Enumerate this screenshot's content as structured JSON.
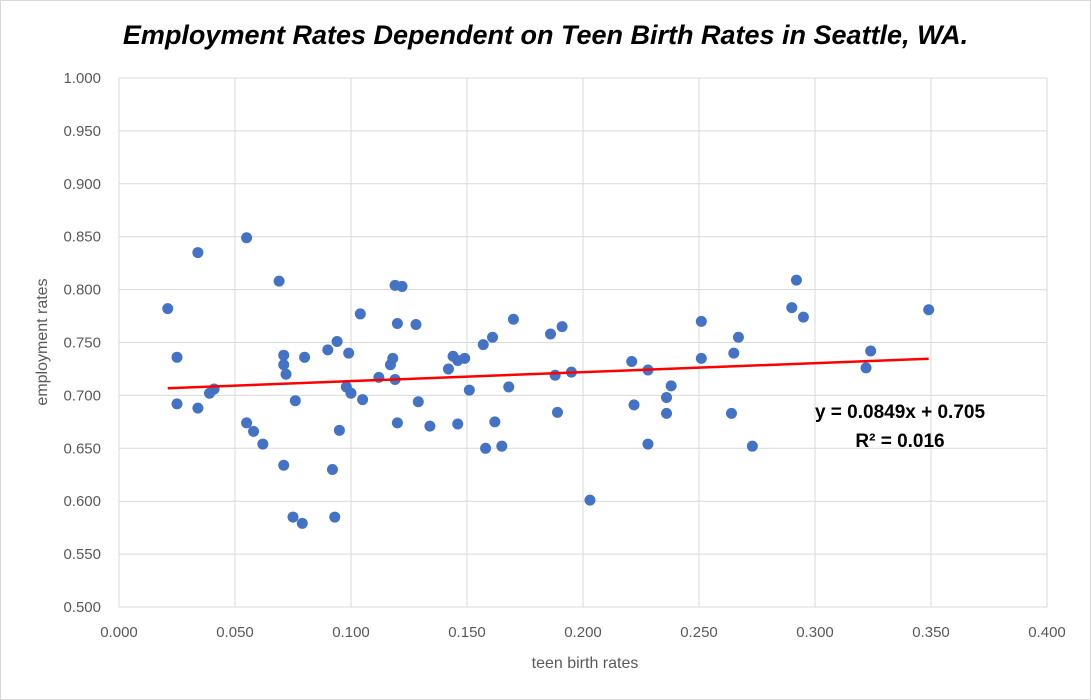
{
  "chart_data": {
    "type": "scatter",
    "title": "Employment Rates Dependent on Teen Birth Rates in Seattle, WA.",
    "xlabel": "teen birth rates",
    "ylabel": "employment rates",
    "xlim": [
      0,
      0.4
    ],
    "ylim": [
      0.5,
      1.0
    ],
    "x_ticks": [
      "0.000",
      "0.050",
      "0.100",
      "0.150",
      "0.200",
      "0.250",
      "0.300",
      "0.350",
      "0.400"
    ],
    "y_ticks": [
      "0.500",
      "0.550",
      "0.600",
      "0.650",
      "0.700",
      "0.750",
      "0.800",
      "0.850",
      "0.900",
      "0.950",
      "1.000"
    ],
    "grid": true,
    "point_color": "#4472c4",
    "trendline": {
      "color": "#ff0000",
      "slope": 0.0849,
      "intercept": 0.705,
      "x_range": [
        0.021,
        0.349
      ],
      "equation": "y = 0.0849x + 0.705",
      "r2": "R² = 0.016"
    },
    "points": [
      [
        0.021,
        0.782
      ],
      [
        0.025,
        0.736
      ],
      [
        0.025,
        0.692
      ],
      [
        0.034,
        0.835
      ],
      [
        0.034,
        0.688
      ],
      [
        0.039,
        0.702
      ],
      [
        0.041,
        0.706
      ],
      [
        0.055,
        0.849
      ],
      [
        0.055,
        0.674
      ],
      [
        0.058,
        0.666
      ],
      [
        0.062,
        0.654
      ],
      [
        0.069,
        0.808
      ],
      [
        0.071,
        0.738
      ],
      [
        0.071,
        0.729
      ],
      [
        0.072,
        0.72
      ],
      [
        0.071,
        0.634
      ],
      [
        0.075,
        0.585
      ],
      [
        0.076,
        0.695
      ],
      [
        0.079,
        0.579
      ],
      [
        0.08,
        0.736
      ],
      [
        0.09,
        0.743
      ],
      [
        0.092,
        0.63
      ],
      [
        0.093,
        0.585
      ],
      [
        0.094,
        0.751
      ],
      [
        0.095,
        0.667
      ],
      [
        0.098,
        0.708
      ],
      [
        0.099,
        0.74
      ],
      [
        0.1,
        0.702
      ],
      [
        0.104,
        0.777
      ],
      [
        0.105,
        0.696
      ],
      [
        0.112,
        0.717
      ],
      [
        0.117,
        0.729
      ],
      [
        0.118,
        0.735
      ],
      [
        0.119,
        0.804
      ],
      [
        0.119,
        0.715
      ],
      [
        0.12,
        0.768
      ],
      [
        0.12,
        0.674
      ],
      [
        0.122,
        0.803
      ],
      [
        0.128,
        0.767
      ],
      [
        0.129,
        0.694
      ],
      [
        0.134,
        0.671
      ],
      [
        0.142,
        0.725
      ],
      [
        0.144,
        0.737
      ],
      [
        0.146,
        0.733
      ],
      [
        0.146,
        0.673
      ],
      [
        0.149,
        0.735
      ],
      [
        0.151,
        0.705
      ],
      [
        0.157,
        0.748
      ],
      [
        0.158,
        0.65
      ],
      [
        0.161,
        0.755
      ],
      [
        0.162,
        0.675
      ],
      [
        0.165,
        0.652
      ],
      [
        0.168,
        0.708
      ],
      [
        0.17,
        0.772
      ],
      [
        0.186,
        0.758
      ],
      [
        0.188,
        0.719
      ],
      [
        0.189,
        0.684
      ],
      [
        0.191,
        0.765
      ],
      [
        0.195,
        0.722
      ],
      [
        0.203,
        0.601
      ],
      [
        0.221,
        0.732
      ],
      [
        0.222,
        0.691
      ],
      [
        0.228,
        0.724
      ],
      [
        0.228,
        0.654
      ],
      [
        0.236,
        0.698
      ],
      [
        0.236,
        0.683
      ],
      [
        0.238,
        0.709
      ],
      [
        0.251,
        0.77
      ],
      [
        0.251,
        0.735
      ],
      [
        0.264,
        0.683
      ],
      [
        0.265,
        0.74
      ],
      [
        0.267,
        0.755
      ],
      [
        0.273,
        0.652
      ],
      [
        0.29,
        0.783
      ],
      [
        0.292,
        0.809
      ],
      [
        0.295,
        0.774
      ],
      [
        0.322,
        0.726
      ],
      [
        0.324,
        0.742
      ],
      [
        0.349,
        0.781
      ]
    ]
  }
}
